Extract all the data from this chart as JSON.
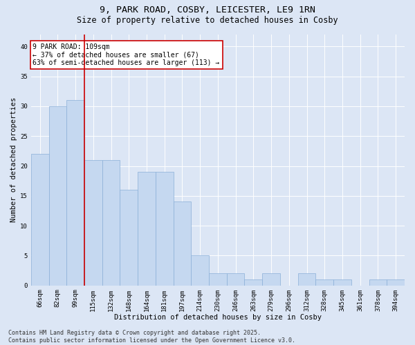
{
  "title_line1": "9, PARK ROAD, COSBY, LEICESTER, LE9 1RN",
  "title_line2": "Size of property relative to detached houses in Cosby",
  "xlabel": "Distribution of detached houses by size in Cosby",
  "ylabel": "Number of detached properties",
  "categories": [
    "66sqm",
    "82sqm",
    "99sqm",
    "115sqm",
    "132sqm",
    "148sqm",
    "164sqm",
    "181sqm",
    "197sqm",
    "214sqm",
    "230sqm",
    "246sqm",
    "263sqm",
    "279sqm",
    "296sqm",
    "312sqm",
    "328sqm",
    "345sqm",
    "361sqm",
    "378sqm",
    "394sqm"
  ],
  "values": [
    22,
    30,
    31,
    21,
    21,
    16,
    19,
    19,
    14,
    5,
    2,
    2,
    1,
    2,
    0,
    2,
    1,
    1,
    0,
    1,
    1
  ],
  "bar_color": "#c5d8f0",
  "bar_edge_color": "#8ab0d8",
  "bar_edge_width": 0.5,
  "vline_x": 2.5,
  "vline_color": "#cc0000",
  "annotation_text": "9 PARK ROAD: 109sqm\n← 37% of detached houses are smaller (67)\n63% of semi-detached houses are larger (113) →",
  "annotation_box_facecolor": "#ffffff",
  "annotation_box_edgecolor": "#cc0000",
  "ylim": [
    0,
    42
  ],
  "yticks": [
    0,
    5,
    10,
    15,
    20,
    25,
    30,
    35,
    40
  ],
  "bg_color": "#dce6f5",
  "plot_bg_color": "#dce6f5",
  "footer_text": "Contains HM Land Registry data © Crown copyright and database right 2025.\nContains public sector information licensed under the Open Government Licence v3.0.",
  "title_fontsize": 9.5,
  "subtitle_fontsize": 8.5,
  "annotation_fontsize": 7,
  "xlabel_fontsize": 7.5,
  "ylabel_fontsize": 7.5,
  "tick_fontsize": 6.5,
  "footer_fontsize": 6
}
